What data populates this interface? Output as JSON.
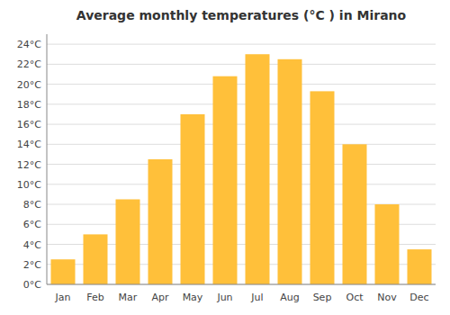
{
  "chart_data": {
    "type": "bar",
    "title": "Average monthly temperatures (°C ) in Mirano",
    "categories": [
      "Jan",
      "Feb",
      "Mar",
      "Apr",
      "May",
      "Jun",
      "Jul",
      "Aug",
      "Sep",
      "Oct",
      "Nov",
      "Dec"
    ],
    "values": [
      2.5,
      5.0,
      8.5,
      12.5,
      17.0,
      20.8,
      23.0,
      22.5,
      19.3,
      14.0,
      8.0,
      3.5
    ],
    "color": "#FFC03A",
    "ylim": [
      0,
      25
    ],
    "yticks": [
      {
        "value": 0,
        "label": "0°C"
      },
      {
        "value": 2,
        "label": "2°C"
      },
      {
        "value": 4,
        "label": "4°C"
      },
      {
        "value": 6,
        "label": "6°C"
      },
      {
        "value": 8,
        "label": "8°C"
      },
      {
        "value": 10,
        "label": "10°C"
      },
      {
        "value": 12,
        "label": "12°C"
      },
      {
        "value": 14,
        "label": "14°C"
      },
      {
        "value": 16,
        "label": "16°C"
      },
      {
        "value": 18,
        "label": "18°C"
      },
      {
        "value": 20,
        "label": "20°C"
      },
      {
        "value": 22,
        "label": "22°C"
      },
      {
        "value": 24,
        "label": "24°C"
      }
    ],
    "grid": true
  }
}
